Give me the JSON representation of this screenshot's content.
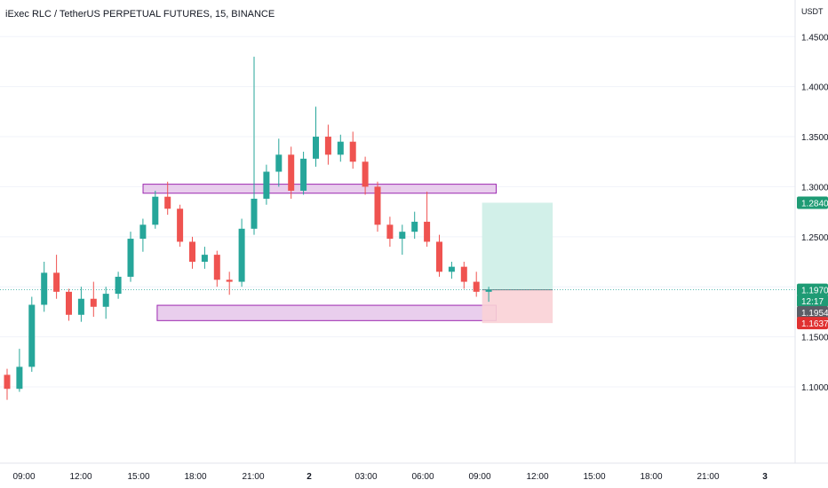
{
  "header": {
    "title": "iExec RLC / TetherUS PERPETUAL FUTURES, 15, BINANCE"
  },
  "colors": {
    "up": "#26a69a",
    "down": "#ef5350",
    "zone_border": "#9c27b0",
    "zone_fill": "#e1bee7",
    "target_fill": "#cdeee7",
    "stop_fill": "#fad2d6",
    "grid": "#f0f3fa"
  },
  "chart_data": {
    "type": "candlestick",
    "ylabel": "USDT",
    "ylim": [
      1.045,
      1.46
    ],
    "y_ticks": [
      "1.4500",
      "1.4000",
      "1.3500",
      "1.3000",
      "1.2500",
      "1.2000",
      "1.1500",
      "1.1000"
    ],
    "x_ticks": [
      "09:00",
      "12:00",
      "15:00",
      "18:00",
      "21:00",
      "2",
      "03:00",
      "06:00",
      "09:00",
      "12:00",
      "15:00",
      "18:00",
      "21:00",
      "3"
    ],
    "price_labels": [
      {
        "value": "1.2840",
        "y": 1.284,
        "color": "#1e9b74"
      },
      {
        "value": "1.1970",
        "y": 1.197,
        "color": "#1e9b74"
      },
      {
        "value": "12:17",
        "y": 1.186,
        "color": "#1e9b74"
      },
      {
        "value": "1.1954",
        "y": 1.1745,
        "color": "#5b5e66"
      },
      {
        "value": "1.1637",
        "y": 1.1637,
        "color": "#e03131"
      }
    ],
    "zones": [
      {
        "name": "resistance-zone",
        "x0": 9.75,
        "x1": 34.75,
        "y0": 1.2935,
        "y1": 1.3025
      },
      {
        "name": "support-zone",
        "x0": 10.75,
        "x1": 34.75,
        "y0": 1.1662,
        "y1": 1.1815
      }
    ],
    "position": {
      "x0": 33.75,
      "x1": 38.75,
      "entry": 1.197,
      "target": 1.284,
      "stop": 1.1637
    },
    "candles": [
      {
        "t": "09:00",
        "o": 1.112,
        "h": 1.118,
        "l": 1.087,
        "c": 1.098
      },
      {
        "t": "09:45",
        "o": 1.098,
        "h": 1.138,
        "l": 1.095,
        "c": 1.12
      },
      {
        "t": "10:30",
        "o": 1.12,
        "h": 1.19,
        "l": 1.115,
        "c": 1.182
      },
      {
        "t": "11:15",
        "o": 1.182,
        "h": 1.225,
        "l": 1.175,
        "c": 1.214
      },
      {
        "t": "12:00",
        "o": 1.214,
        "h": 1.232,
        "l": 1.188,
        "c": 1.195
      },
      {
        "t": "12:45",
        "o": 1.195,
        "h": 1.198,
        "l": 1.166,
        "c": 1.172
      },
      {
        "t": "13:30",
        "o": 1.172,
        "h": 1.2,
        "l": 1.165,
        "c": 1.188
      },
      {
        "t": "14:15",
        "o": 1.188,
        "h": 1.205,
        "l": 1.17,
        "c": 1.18
      },
      {
        "t": "15:00",
        "o": 1.18,
        "h": 1.2,
        "l": 1.168,
        "c": 1.193
      },
      {
        "t": "15:45",
        "o": 1.193,
        "h": 1.215,
        "l": 1.188,
        "c": 1.21
      },
      {
        "t": "16:30",
        "o": 1.21,
        "h": 1.255,
        "l": 1.205,
        "c": 1.248
      },
      {
        "t": "17:15",
        "o": 1.248,
        "h": 1.268,
        "l": 1.235,
        "c": 1.262
      },
      {
        "t": "18:00",
        "o": 1.262,
        "h": 1.296,
        "l": 1.258,
        "c": 1.29
      },
      {
        "t": "18:45",
        "o": 1.29,
        "h": 1.305,
        "l": 1.272,
        "c": 1.278
      },
      {
        "t": "19:30",
        "o": 1.278,
        "h": 1.282,
        "l": 1.24,
        "c": 1.245
      },
      {
        "t": "20:15",
        "o": 1.245,
        "h": 1.25,
        "l": 1.218,
        "c": 1.225
      },
      {
        "t": "21:00",
        "o": 1.225,
        "h": 1.24,
        "l": 1.218,
        "c": 1.232
      },
      {
        "t": "21:45",
        "o": 1.232,
        "h": 1.236,
        "l": 1.2,
        "c": 1.207
      },
      {
        "t": "22:30",
        "o": 1.207,
        "h": 1.215,
        "l": 1.192,
        "c": 1.205
      },
      {
        "t": "23:15",
        "o": 1.205,
        "h": 1.268,
        "l": 1.2,
        "c": 1.258
      },
      {
        "t": "00:00",
        "o": 1.258,
        "h": 1.43,
        "l": 1.252,
        "c": 1.288
      },
      {
        "t": "00:45",
        "o": 1.288,
        "h": 1.322,
        "l": 1.282,
        "c": 1.315
      },
      {
        "t": "01:30",
        "o": 1.315,
        "h": 1.348,
        "l": 1.3,
        "c": 1.332
      },
      {
        "t": "02:15",
        "o": 1.332,
        "h": 1.34,
        "l": 1.288,
        "c": 1.296
      },
      {
        "t": "03:00",
        "o": 1.296,
        "h": 1.335,
        "l": 1.292,
        "c": 1.328
      },
      {
        "t": "03:45",
        "o": 1.328,
        "h": 1.38,
        "l": 1.32,
        "c": 1.35
      },
      {
        "t": "04:30",
        "o": 1.35,
        "h": 1.362,
        "l": 1.322,
        "c": 1.332
      },
      {
        "t": "05:15",
        "o": 1.332,
        "h": 1.352,
        "l": 1.325,
        "c": 1.345
      },
      {
        "t": "06:00",
        "o": 1.345,
        "h": 1.355,
        "l": 1.318,
        "c": 1.325
      },
      {
        "t": "06:45",
        "o": 1.325,
        "h": 1.33,
        "l": 1.292,
        "c": 1.3
      },
      {
        "t": "07:30",
        "o": 1.3,
        "h": 1.305,
        "l": 1.255,
        "c": 1.262
      },
      {
        "t": "08:15",
        "o": 1.262,
        "h": 1.27,
        "l": 1.24,
        "c": 1.248
      },
      {
        "t": "09:00",
        "o": 1.248,
        "h": 1.262,
        "l": 1.232,
        "c": 1.255
      },
      {
        "t": "09:45",
        "o": 1.255,
        "h": 1.275,
        "l": 1.248,
        "c": 1.265
      },
      {
        "t": "10:30",
        "o": 1.265,
        "h": 1.295,
        "l": 1.24,
        "c": 1.245
      },
      {
        "t": "11:15",
        "o": 1.245,
        "h": 1.252,
        "l": 1.21,
        "c": 1.215
      },
      {
        "t": "12:00",
        "o": 1.215,
        "h": 1.225,
        "l": 1.208,
        "c": 1.22
      },
      {
        "t": "12:45",
        "o": 1.22,
        "h": 1.225,
        "l": 1.198,
        "c": 1.205
      },
      {
        "t": "13:30",
        "o": 1.205,
        "h": 1.215,
        "l": 1.19,
        "c": 1.195
      },
      {
        "t": "14:15",
        "o": 1.195,
        "h": 1.2,
        "l": 1.185,
        "c": 1.197
      }
    ]
  }
}
